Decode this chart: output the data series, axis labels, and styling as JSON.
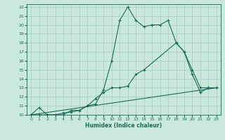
{
  "xlabel": "Humidex (Indice chaleur)",
  "bg_color": "#cbe8dc",
  "grid_color": "#a8ccbc",
  "line_color": "#1a6b5a",
  "ylim": [
    10,
    22.3
  ],
  "xlim": [
    -0.5,
    23.5
  ],
  "yticks": [
    10,
    11,
    12,
    13,
    14,
    15,
    16,
    17,
    18,
    19,
    20,
    21,
    22
  ],
  "xticks": [
    0,
    1,
    2,
    3,
    4,
    5,
    6,
    7,
    8,
    9,
    10,
    11,
    12,
    13,
    14,
    15,
    16,
    17,
    18,
    19,
    20,
    21,
    22,
    23
  ],
  "line1_x": [
    0,
    1,
    2,
    3,
    4,
    5,
    6,
    7,
    8,
    9,
    10,
    11,
    12,
    13,
    14,
    15,
    16,
    17,
    18,
    19,
    20,
    21,
    22,
    23
  ],
  "line1_y": [
    10,
    10.8,
    10,
    10,
    10,
    10.5,
    10.5,
    11,
    11.2,
    12.8,
    16,
    20.5,
    22,
    20.5,
    19.8,
    20,
    20,
    20.5,
    18,
    17,
    14.5,
    12.5,
    13,
    13
  ],
  "line2_x": [
    0,
    1,
    2,
    3,
    4,
    5,
    6,
    7,
    8,
    9,
    10,
    11,
    12,
    13,
    14,
    18,
    19,
    20,
    21,
    22,
    23
  ],
  "line2_y": [
    10,
    10,
    10,
    10,
    10.2,
    10.3,
    10.5,
    11,
    11.8,
    12.5,
    13,
    13,
    13.2,
    14.5,
    15,
    18,
    17,
    15,
    13,
    13,
    13
  ],
  "line3_x": [
    0,
    23
  ],
  "line3_y": [
    10,
    13
  ]
}
